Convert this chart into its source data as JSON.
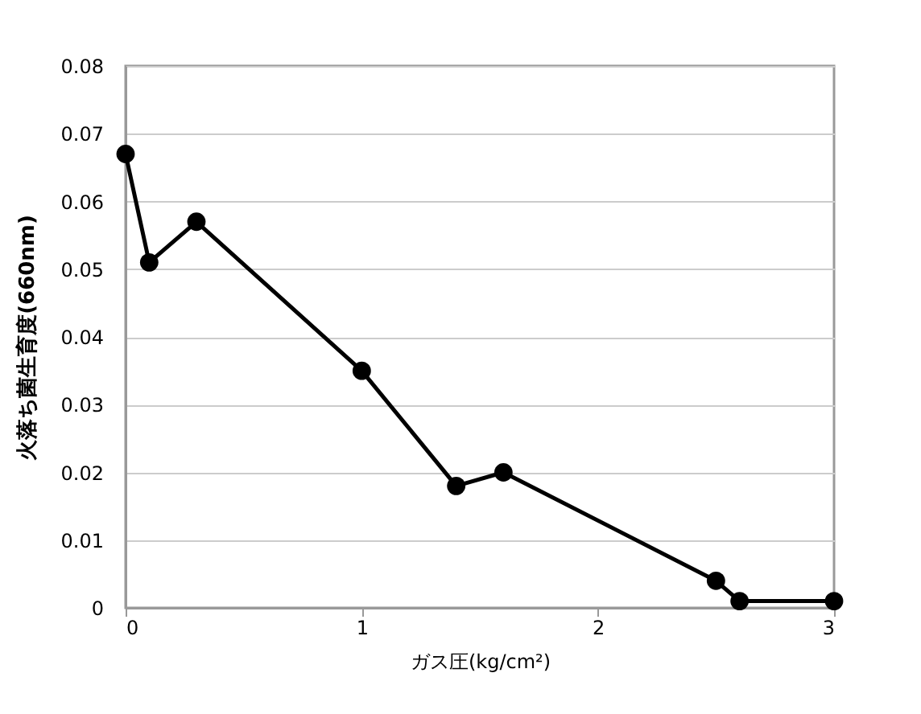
{
  "chart_data": {
    "type": "line",
    "xlabel": "ガス圧(kg/cm²)",
    "ylabel": "火落ち菌生育度(660nm)",
    "x": [
      0,
      0.1,
      0.3,
      1,
      1.4,
      1.6,
      2.5,
      2.6,
      3
    ],
    "series": [
      {
        "color": "#000000",
        "values": [
          0.067,
          0.051,
          0.057,
          0.035,
          0.018,
          0.02,
          0.004,
          0.001,
          0.001
        ]
      }
    ],
    "xlim": [
      0,
      3
    ],
    "xticks": [
      0,
      1,
      2,
      3
    ],
    "ylim": [
      0,
      0.08
    ],
    "yticks": [
      0,
      0.01,
      0.02,
      0.03,
      0.04,
      0.05,
      0.06,
      0.07,
      0.08
    ],
    "grid": "y",
    "marker": "circle",
    "line_style": "solid",
    "legend": false
  }
}
